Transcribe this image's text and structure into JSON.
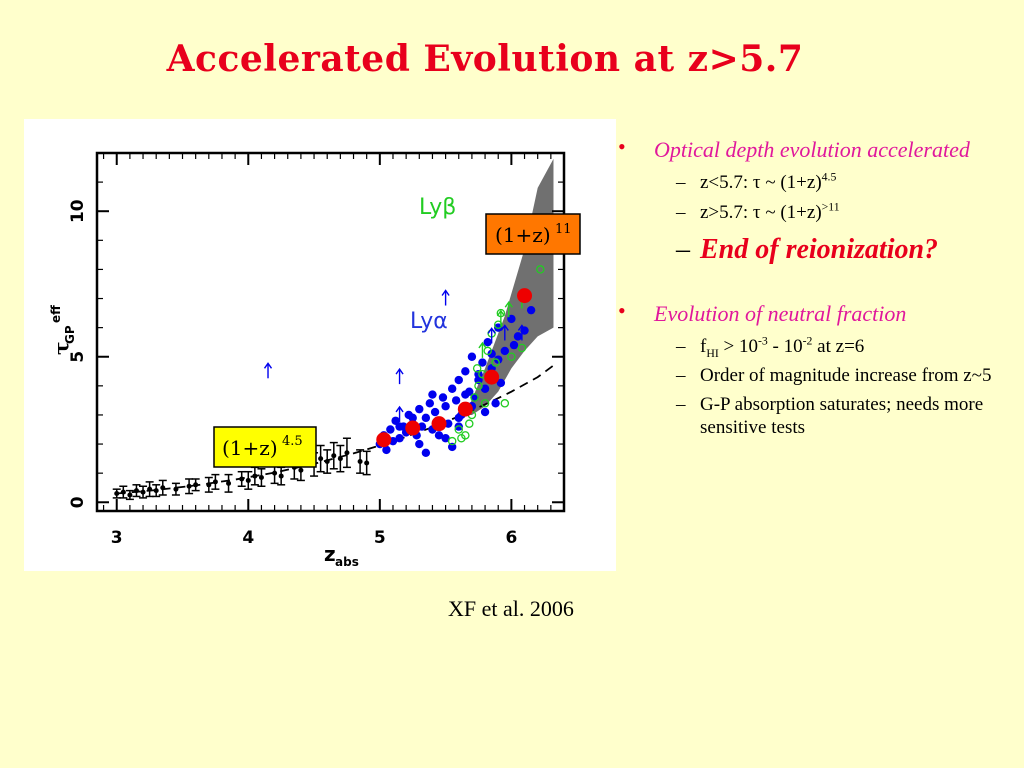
{
  "slide": {
    "title": "Accelerated Evolution at z>5.7",
    "credit": "XF et al. 2006"
  },
  "bullets": {
    "b1_text": "Optical depth evolution accelerated",
    "b1_sub1_prefix": "z<5.7: τ ~ (1+z)",
    "b1_sub1_exp": "4.5",
    "b1_sub2_prefix": "z>5.7: τ ~ (1+z)",
    "b1_sub2_exp": ">11",
    "b1_sub3": "End of reionization?",
    "b2_text": "Evolution of neutral fraction",
    "b2_sub1_f": "f",
    "b2_sub1_hi": "HI",
    "b2_sub1_mid": " > 10",
    "b2_sub1_e1": "-3",
    "b2_sub1_mid2": " - 10",
    "b2_sub1_e2": "-2",
    "b2_sub1_end": " at z=6",
    "b2_sub2": "Order of magnitude increase from z~5",
    "b2_sub3": "G-P absorption saturates; needs more sensitive tests",
    "bullet_glyph": "•",
    "dash_glyph": "–"
  },
  "colors": {
    "title": "#e8001c",
    "bullet_text": "#e0189c",
    "blue_points": "#0000ee",
    "red_points": "#ee0000",
    "green_symbols": "#22cc22",
    "band": "#707070",
    "label_yellow": "#ffff00",
    "label_orange": "#ff7700"
  },
  "chart_data": {
    "type": "scatter",
    "xlim": [
      2.85,
      6.4
    ],
    "ylim": [
      -0.3,
      12
    ],
    "xticks": [
      3,
      4,
      5,
      6
    ],
    "yticks": [
      0,
      5,
      10
    ],
    "xlabel_main": "z",
    "xlabel_sub": "abs",
    "ylabel_main": "τ",
    "ylabel_sub": "GP",
    "ylabel_sup": "eff",
    "annotations": {
      "lyb": "Lyβ",
      "lya": "Lyα",
      "label_low_base": "(1+z)",
      "label_low_exp": "4.5",
      "label_high_base": "(1+z)",
      "label_high_exp": "11"
    },
    "band": {
      "x": [
        5.65,
        5.8,
        5.95,
        6.1,
        6.2,
        6.32,
        6.32,
        6.2,
        6.1,
        6.0,
        5.9,
        5.8,
        5.7,
        5.65
      ],
      "y": [
        3.0,
        4.6,
        6.4,
        8.7,
        10.8,
        11.8,
        6.0,
        5.7,
        5.2,
        4.6,
        3.8,
        3.3,
        3.0,
        3.0
      ]
    },
    "dashed_fit": {
      "x": [
        3.0,
        3.3,
        3.6,
        3.9,
        4.2,
        4.5,
        4.8,
        5.0,
        5.2,
        5.4,
        5.6,
        5.8,
        6.0,
        6.2,
        6.35
      ],
      "y": [
        0.3,
        0.42,
        0.58,
        0.78,
        1.02,
        1.32,
        1.68,
        1.95,
        2.25,
        2.58,
        2.95,
        3.36,
        3.8,
        4.3,
        4.8
      ]
    },
    "errorbar_points": {
      "x": [
        3.0,
        3.05,
        3.1,
        3.15,
        3.2,
        3.25,
        3.3,
        3.35,
        3.45,
        3.55,
        3.6,
        3.7,
        3.75,
        3.85,
        3.95,
        4.0,
        4.05,
        4.1,
        4.2,
        4.25,
        4.35,
        4.4,
        4.5,
        4.55,
        4.6,
        4.65,
        4.7,
        4.75,
        4.85,
        4.9
      ],
      "y": [
        0.3,
        0.35,
        0.25,
        0.4,
        0.35,
        0.45,
        0.4,
        0.5,
        0.45,
        0.55,
        0.6,
        0.6,
        0.7,
        0.65,
        0.8,
        0.75,
        0.9,
        0.85,
        1.0,
        0.9,
        1.2,
        1.1,
        1.3,
        1.5,
        1.4,
        1.6,
        1.5,
        1.7,
        1.4,
        1.35
      ],
      "err": [
        0.15,
        0.2,
        0.15,
        0.2,
        0.2,
        0.25,
        0.2,
        0.25,
        0.2,
        0.25,
        0.2,
        0.25,
        0.25,
        0.3,
        0.25,
        0.3,
        0.3,
        0.3,
        0.35,
        0.3,
        0.4,
        0.35,
        0.4,
        0.45,
        0.4,
        0.45,
        0.45,
        0.5,
        0.4,
        0.4
      ]
    },
    "blue_points": {
      "x": [
        5.0,
        5.03,
        5.05,
        5.08,
        5.1,
        5.12,
        5.15,
        5.18,
        5.2,
        5.22,
        5.25,
        5.28,
        5.3,
        5.32,
        5.35,
        5.38,
        5.4,
        5.42,
        5.45,
        5.48,
        5.5,
        5.52,
        5.55,
        5.58,
        5.6,
        5.62,
        5.65,
        5.68,
        5.7,
        5.72,
        5.75,
        5.78,
        5.8,
        5.82,
        5.85,
        5.88,
        5.9,
        5.92,
        5.95,
        6.0,
        6.05,
        6.1,
        6.15,
        5.45,
        5.55,
        5.3,
        5.6,
        5.7,
        5.35,
        5.25,
        5.5,
        5.65,
        5.75,
        5.85,
        5.15,
        5.4,
        5.6,
        5.8,
        5.9,
        6.02
      ],
      "y": [
        2.0,
        2.3,
        1.8,
        2.5,
        2.1,
        2.8,
        2.2,
        2.6,
        2.4,
        3.0,
        2.7,
        2.3,
        3.2,
        2.6,
        2.9,
        3.4,
        2.5,
        3.1,
        2.8,
        3.6,
        3.3,
        2.7,
        3.9,
        3.5,
        4.2,
        3.0,
        4.5,
        3.8,
        5.0,
        3.6,
        4.2,
        4.8,
        3.9,
        5.5,
        4.6,
        3.4,
        6.0,
        4.1,
        5.2,
        6.3,
        5.7,
        5.9,
        6.6,
        2.3,
        1.9,
        2.0,
        2.9,
        3.3,
        1.7,
        2.9,
        2.2,
        3.7,
        4.4,
        5.1,
        2.6,
        3.7,
        2.6,
        3.1,
        4.9,
        5.4
      ]
    },
    "green_circles": {
      "x": [
        5.55,
        5.6,
        5.65,
        5.7,
        5.72,
        5.75,
        5.78,
        5.8,
        5.82,
        5.85,
        5.88,
        5.9,
        5.92,
        5.95,
        6.0,
        6.08,
        6.22,
        5.62,
        5.68,
        5.74
      ],
      "y": [
        2.1,
        2.5,
        2.3,
        3.0,
        3.6,
        4.0,
        4.4,
        3.4,
        5.2,
        5.8,
        4.8,
        6.1,
        6.5,
        3.4,
        5.0,
        5.3,
        8.0,
        2.2,
        2.7,
        4.6
      ]
    },
    "lower_limit_arrows": {
      "blue": {
        "x": [
          4.15,
          5.15,
          5.5,
          5.85,
          5.95,
          6.08,
          5.15
        ],
        "y": [
          4.5,
          4.3,
          7.0,
          5.7,
          5.8,
          5.8,
          3.0
        ]
      },
      "green": {
        "x": [
          5.78,
          5.92,
          5.98,
          6.08
        ],
        "y": [
          5.2,
          6.3,
          6.6,
          6.9
        ]
      }
    },
    "red_points": {
      "x": [
        5.03,
        5.25,
        5.45,
        5.65,
        5.85,
        6.1
      ],
      "y": [
        2.15,
        2.55,
        2.7,
        3.2,
        4.3,
        7.1
      ]
    }
  }
}
